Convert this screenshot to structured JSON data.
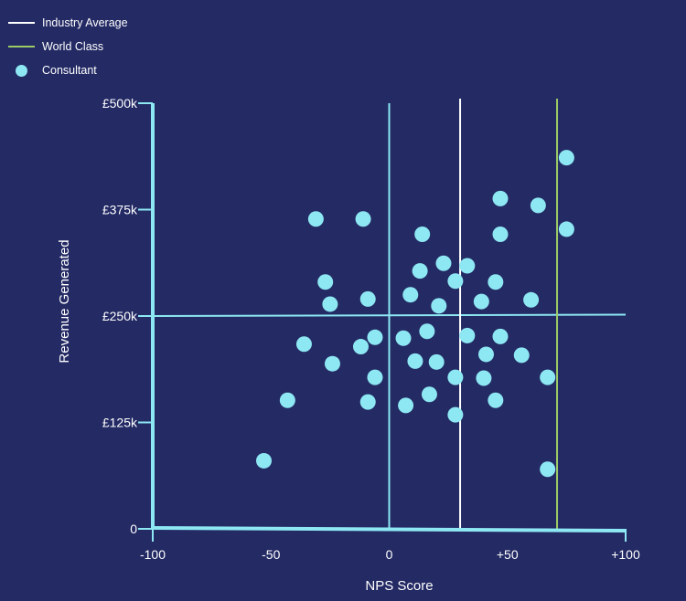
{
  "colors": {
    "background": "#232a64",
    "axis": "#8ee8f3",
    "points": "#8ee8f3",
    "industry_average": "#ffffff",
    "world_class": "#9ccc65"
  },
  "legend": [
    {
      "label": "Industry Average",
      "type": "line",
      "color": "#ffffff"
    },
    {
      "label": "World Class",
      "type": "line",
      "color": "#9ccc65"
    },
    {
      "label": "Consultant",
      "type": "dot",
      "color": "#8ee8f3"
    }
  ],
  "chart_data": {
    "type": "scatter",
    "title": "",
    "xlabel": "NPS Score",
    "ylabel": "Revenue Generated",
    "xlim": [
      -100,
      100
    ],
    "ylim": [
      0,
      500
    ],
    "x_ticks": [
      {
        "value": -100,
        "label": "-100"
      },
      {
        "value": -50,
        "label": "-50"
      },
      {
        "value": 0,
        "label": "0"
      },
      {
        "value": 50,
        "label": "+50"
      },
      {
        "value": 100,
        "label": "+100"
      }
    ],
    "y_ticks": [
      {
        "value": 0,
        "label": "0"
      },
      {
        "value": 125,
        "label": "£125k"
      },
      {
        "value": 250,
        "label": "£250k"
      },
      {
        "value": 375,
        "label": "£375k"
      },
      {
        "value": 500,
        "label": "£500k"
      }
    ],
    "reference_lines": [
      {
        "name": "Industry Average",
        "x": 30,
        "color": "#ffffff"
      },
      {
        "name": "World Class",
        "x": 71,
        "color": "#9ccc65"
      }
    ],
    "quadrant_lines": {
      "x": 0,
      "y": 250
    },
    "series": [
      {
        "name": "Consultant",
        "points": [
          [
            75,
            436
          ],
          [
            47,
            388
          ],
          [
            63,
            380
          ],
          [
            75,
            352
          ],
          [
            -31,
            364
          ],
          [
            -11,
            364
          ],
          [
            14,
            346
          ],
          [
            47,
            346
          ],
          [
            23,
            312
          ],
          [
            33,
            309
          ],
          [
            13,
            303
          ],
          [
            28,
            291
          ],
          [
            45,
            290
          ],
          [
            -27,
            290
          ],
          [
            -9,
            270
          ],
          [
            9,
            275
          ],
          [
            39,
            267
          ],
          [
            60,
            269
          ],
          [
            -25,
            264
          ],
          [
            21,
            262
          ],
          [
            16,
            232
          ],
          [
            -6,
            225
          ],
          [
            6,
            224
          ],
          [
            33,
            227
          ],
          [
            47,
            226
          ],
          [
            -12,
            214
          ],
          [
            -36,
            217
          ],
          [
            41,
            205
          ],
          [
            56,
            204
          ],
          [
            11,
            197
          ],
          [
            20,
            196
          ],
          [
            -24,
            194
          ],
          [
            -6,
            178
          ],
          [
            28,
            178
          ],
          [
            40,
            177
          ],
          [
            67,
            178
          ],
          [
            17,
            158
          ],
          [
            -43,
            151
          ],
          [
            -9,
            149
          ],
          [
            7,
            145
          ],
          [
            45,
            151
          ],
          [
            28,
            134
          ],
          [
            -53,
            80
          ],
          [
            67,
            70
          ]
        ]
      }
    ]
  }
}
